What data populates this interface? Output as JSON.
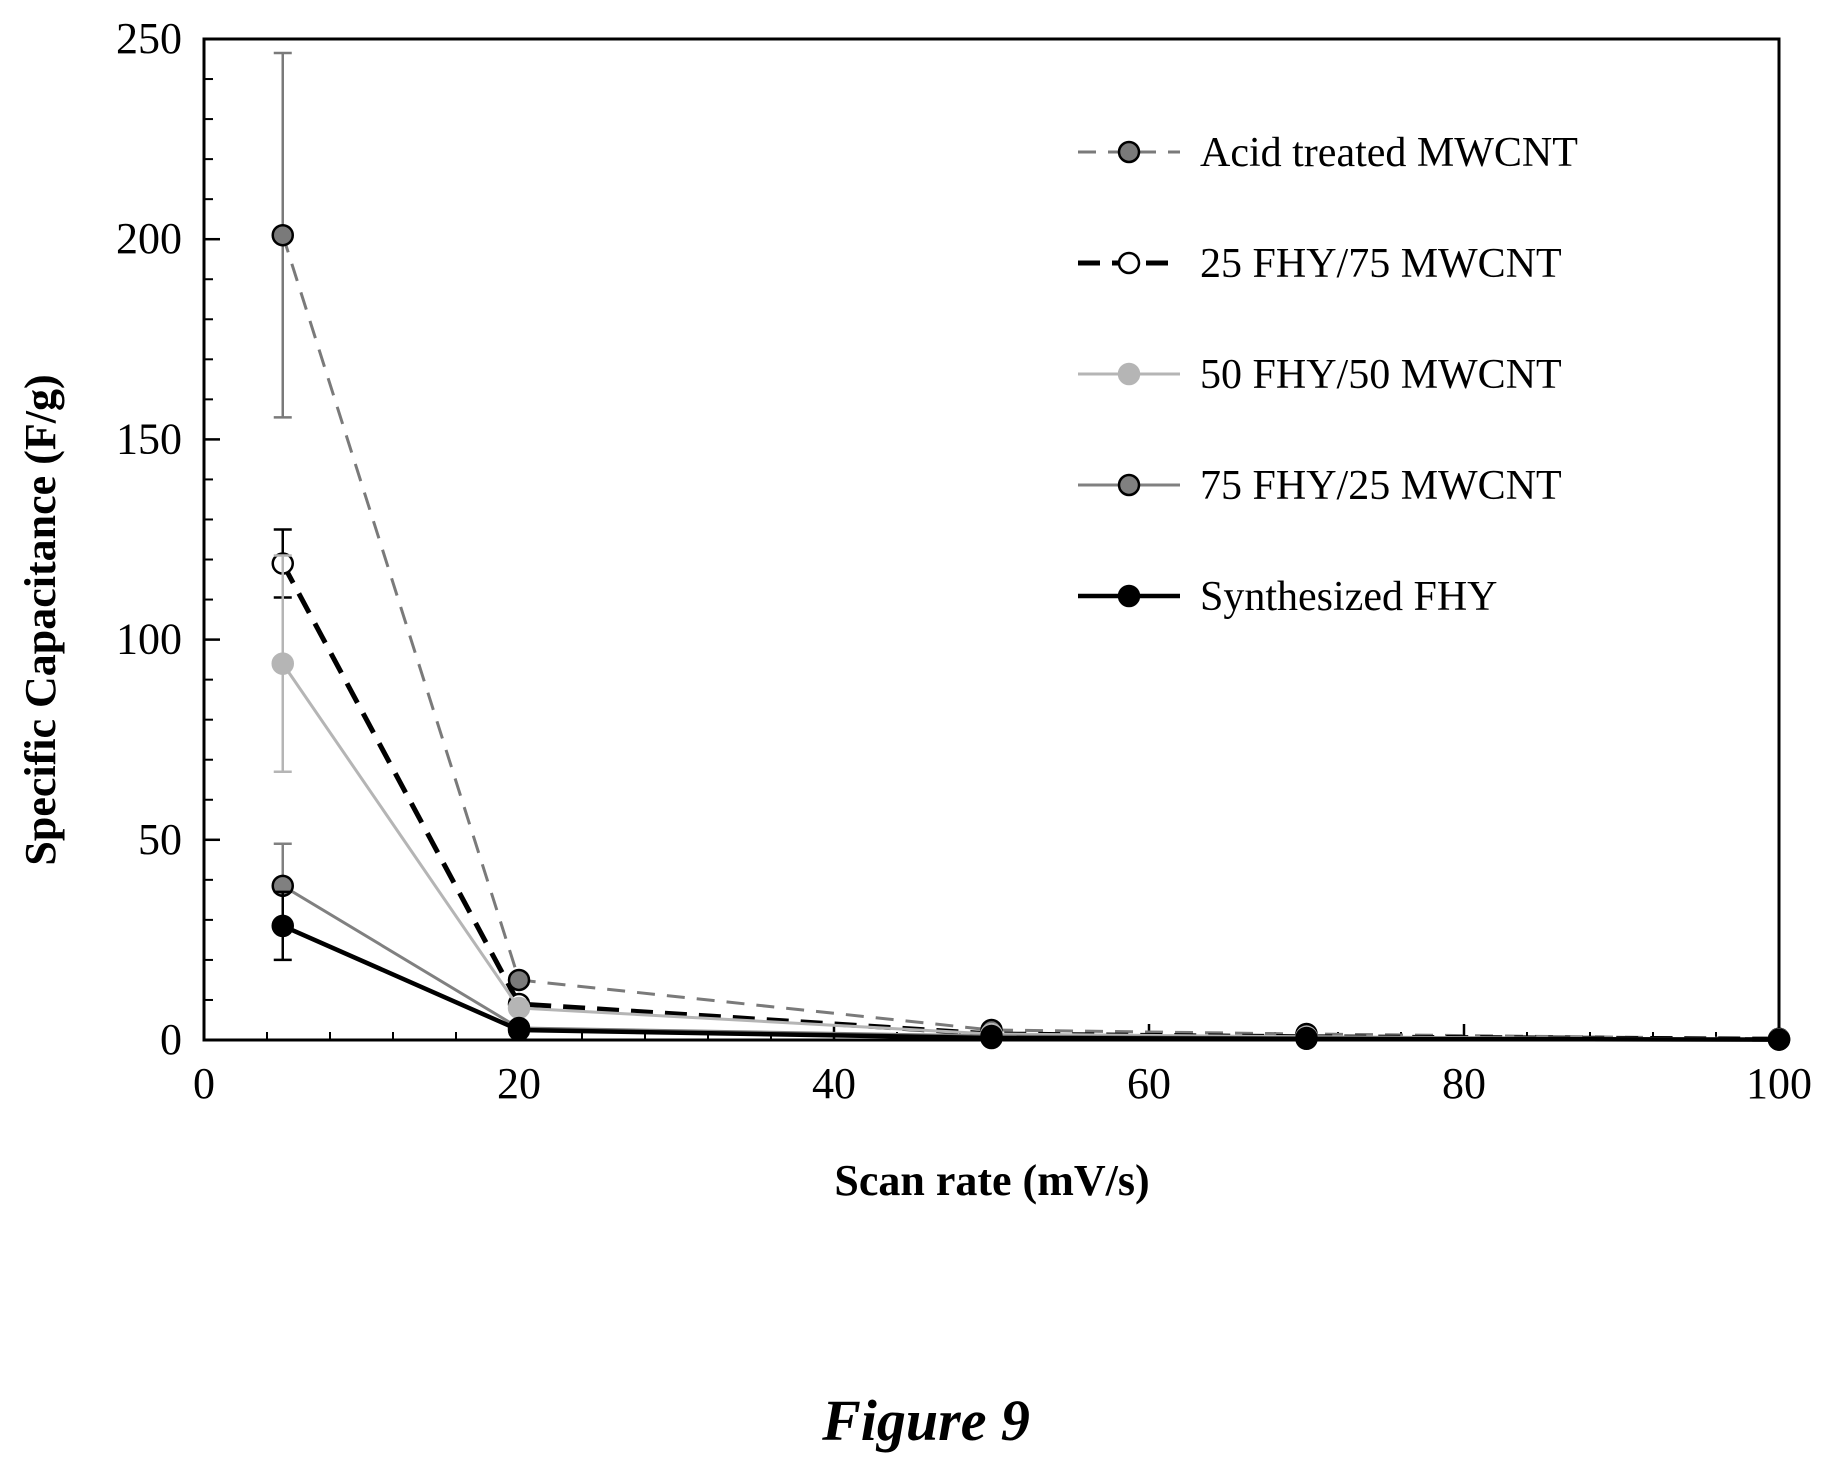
{
  "chart_data": {
    "type": "line",
    "xlabel": "Scan rate (mV/s)",
    "ylabel": "Specific Capacitance (F/g)",
    "xlim": [
      0,
      100
    ],
    "ylim": [
      0,
      250
    ],
    "xticks": [
      0,
      20,
      40,
      60,
      80,
      100
    ],
    "yticks": [
      0,
      50,
      100,
      150,
      200,
      250
    ],
    "grid": false,
    "legend_position": "top-right",
    "caption": "Figure 9",
    "series": [
      {
        "name": "Acid treated MWCNT",
        "x": [
          5,
          20,
          50,
          70,
          100
        ],
        "y": [
          201,
          15,
          2.5,
          1.5,
          0.3
        ],
        "err": [
          45.5,
          0,
          0,
          0,
          0
        ],
        "color": "#7a7a7a",
        "marker_fill": "#7a7a7a",
        "dash": "dash-gray"
      },
      {
        "name": "25 FHY/75 MWCNT",
        "x": [
          5,
          20,
          50,
          70,
          100
        ],
        "y": [
          119,
          9,
          1.5,
          0.8,
          0.2
        ],
        "err": [
          8.5,
          0,
          0,
          0,
          0
        ],
        "color": "#000000",
        "marker_fill": "#ffffff",
        "dash": "dash-black"
      },
      {
        "name": "50 FHY/50 MWCNT",
        "x": [
          5,
          20,
          50,
          70,
          100
        ],
        "y": [
          94,
          8,
          1.5,
          0.8,
          0.2
        ],
        "err": [
          27,
          0,
          0,
          0,
          0
        ],
        "color": "#b5b5b5",
        "marker_fill": "#b5b5b5",
        "dash": "solid"
      },
      {
        "name": "75 FHY/25 MWCNT",
        "x": [
          5,
          20,
          50,
          70,
          100
        ],
        "y": [
          38.5,
          3,
          1,
          0.5,
          0.1
        ],
        "err": [
          10.5,
          0,
          0,
          0,
          0
        ],
        "color": "#808080",
        "marker_fill": "#808080",
        "dash": "solid"
      },
      {
        "name": "Synthesized FHY",
        "x": [
          5,
          20,
          50,
          70,
          100
        ],
        "y": [
          28.5,
          2.5,
          0.5,
          0.3,
          0.1
        ],
        "err": [
          8.5,
          0,
          0,
          0,
          0
        ],
        "color": "#000000",
        "marker_fill": "#000000",
        "dash": "solid"
      }
    ]
  }
}
